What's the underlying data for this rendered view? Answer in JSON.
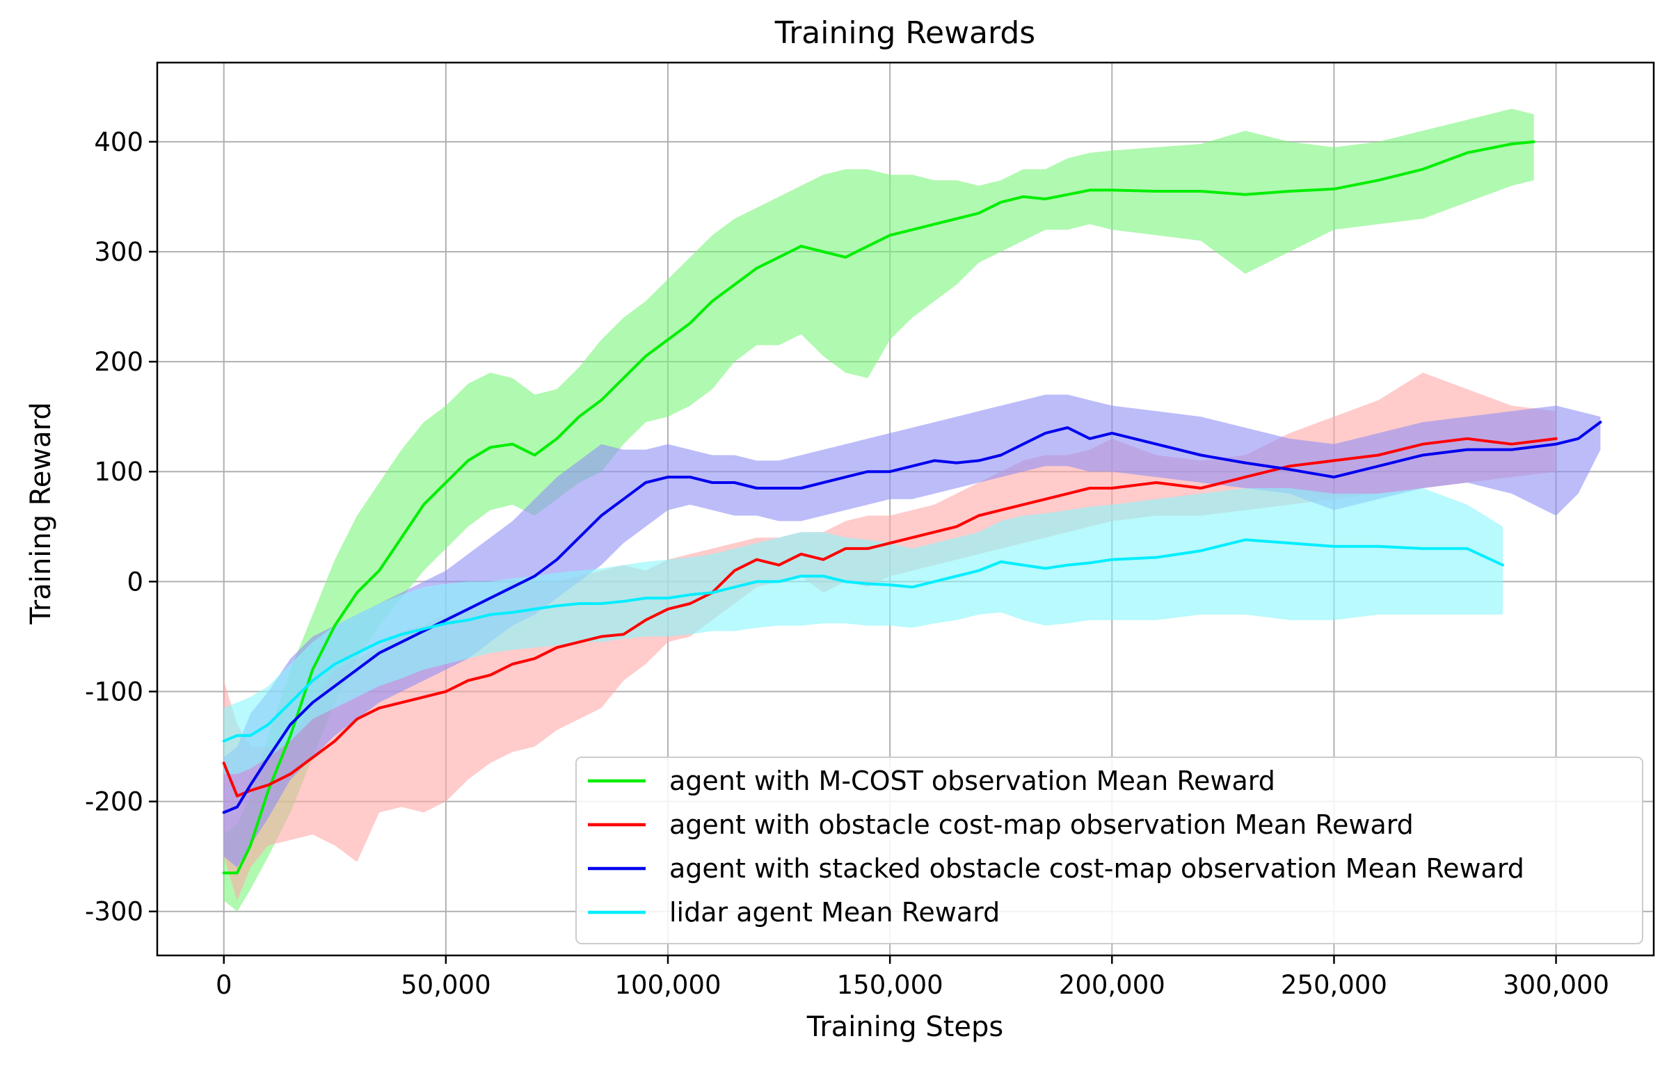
{
  "chart_data": {
    "type": "line",
    "title": "Training Rewards",
    "xlabel": "Training Steps",
    "ylabel": "Training Reward",
    "xlim": [
      -15000,
      322000
    ],
    "ylim": [
      -340,
      472
    ],
    "x_ticks": [
      0,
      50000,
      100000,
      150000,
      200000,
      250000,
      300000
    ],
    "x_tick_labels": [
      "0",
      "50,000",
      "100,000",
      "150,000",
      "200,000",
      "250,000",
      "300,000"
    ],
    "y_ticks": [
      -300,
      -200,
      -100,
      0,
      100,
      200,
      300,
      400
    ],
    "y_tick_labels": [
      "-300",
      "-200",
      "-100",
      "0",
      "100",
      "200",
      "300",
      "400"
    ],
    "grid": true,
    "legend_position": "lower-right",
    "series": [
      {
        "name": "agent with M-COST observation Mean Reward",
        "color": "#00ee00",
        "band_color": "#7cf57c",
        "x": [
          0,
          3000,
          6000,
          10000,
          15000,
          20000,
          25000,
          30000,
          35000,
          40000,
          45000,
          50000,
          55000,
          60000,
          65000,
          70000,
          75000,
          80000,
          85000,
          90000,
          95000,
          100000,
          105000,
          110000,
          115000,
          120000,
          125000,
          130000,
          135000,
          140000,
          145000,
          150000,
          155000,
          160000,
          165000,
          170000,
          175000,
          180000,
          185000,
          190000,
          195000,
          200000,
          210000,
          220000,
          230000,
          240000,
          250000,
          260000,
          270000,
          280000,
          290000,
          295000
        ],
        "y": [
          -265,
          -265,
          -240,
          -190,
          -140,
          -80,
          -40,
          -10,
          10,
          40,
          70,
          90,
          110,
          122,
          125,
          115,
          130,
          150,
          165,
          185,
          205,
          220,
          235,
          255,
          270,
          285,
          295,
          305,
          300,
          295,
          305,
          315,
          320,
          325,
          330,
          335,
          345,
          350,
          348,
          352,
          356,
          356,
          355,
          355,
          352,
          355,
          357,
          365,
          375,
          390,
          398,
          400
        ],
        "lower": [
          -290,
          -300,
          -280,
          -250,
          -210,
          -160,
          -110,
          -70,
          -40,
          -15,
          10,
          30,
          50,
          65,
          70,
          60,
          75,
          90,
          100,
          125,
          145,
          150,
          160,
          175,
          200,
          215,
          215,
          225,
          205,
          190,
          185,
          220,
          240,
          255,
          270,
          290,
          300,
          310,
          320,
          320,
          325,
          320,
          315,
          310,
          280,
          300,
          320,
          325,
          330,
          345,
          360,
          365
        ],
        "upper": [
          -230,
          -220,
          -195,
          -140,
          -80,
          -30,
          20,
          60,
          90,
          120,
          145,
          160,
          180,
          190,
          185,
          170,
          175,
          195,
          220,
          240,
          255,
          275,
          295,
          315,
          330,
          340,
          350,
          360,
          370,
          375,
          375,
          370,
          370,
          365,
          365,
          360,
          365,
          375,
          375,
          385,
          390,
          392,
          395,
          398,
          410,
          400,
          395,
          400,
          410,
          420,
          430,
          425
        ]
      },
      {
        "name": "agent with obstacle cost-map observation Mean Reward",
        "color": "#ff0000",
        "band_color": "#ffa8a8",
        "x": [
          0,
          3000,
          6000,
          10000,
          15000,
          20000,
          25000,
          30000,
          35000,
          40000,
          45000,
          50000,
          55000,
          60000,
          65000,
          70000,
          75000,
          80000,
          85000,
          90000,
          95000,
          100000,
          105000,
          110000,
          115000,
          120000,
          125000,
          130000,
          135000,
          140000,
          145000,
          150000,
          155000,
          160000,
          165000,
          170000,
          175000,
          180000,
          185000,
          190000,
          195000,
          200000,
          210000,
          220000,
          230000,
          240000,
          250000,
          260000,
          270000,
          280000,
          290000,
          300000
        ],
        "y": [
          -165,
          -195,
          -190,
          -185,
          -175,
          -160,
          -145,
          -125,
          -115,
          -110,
          -105,
          -100,
          -90,
          -85,
          -75,
          -70,
          -60,
          -55,
          -50,
          -48,
          -35,
          -25,
          -20,
          -10,
          10,
          20,
          15,
          25,
          20,
          30,
          30,
          35,
          40,
          45,
          50,
          60,
          65,
          70,
          75,
          80,
          85,
          85,
          90,
          85,
          95,
          105,
          110,
          115,
          125,
          130,
          125,
          130
        ],
        "lower": [
          -250,
          -290,
          -260,
          -240,
          -235,
          -230,
          -240,
          -255,
          -210,
          -205,
          -210,
          -200,
          -180,
          -165,
          -155,
          -150,
          -135,
          -125,
          -115,
          -90,
          -75,
          -55,
          -50,
          -35,
          -20,
          -5,
          0,
          5,
          -10,
          0,
          -5,
          5,
          10,
          15,
          20,
          25,
          30,
          35,
          40,
          45,
          50,
          55,
          60,
          60,
          65,
          70,
          75,
          80,
          85,
          90,
          95,
          100
        ],
        "upper": [
          -90,
          -130,
          -150,
          -150,
          -145,
          -110,
          -80,
          -70,
          -60,
          -45,
          -40,
          -30,
          -25,
          -15,
          0,
          0,
          0,
          5,
          10,
          15,
          10,
          20,
          25,
          30,
          35,
          40,
          40,
          45,
          45,
          55,
          60,
          60,
          65,
          70,
          80,
          90,
          100,
          110,
          115,
          115,
          120,
          130,
          115,
          110,
          115,
          135,
          150,
          165,
          190,
          175,
          160,
          155
        ]
      },
      {
        "name": "agent with stacked obstacle cost-map observation Mean Reward",
        "color": "#0000ee",
        "band_color": "#8f8ff5",
        "x": [
          0,
          3000,
          6000,
          10000,
          15000,
          20000,
          25000,
          30000,
          35000,
          40000,
          45000,
          50000,
          55000,
          60000,
          65000,
          70000,
          75000,
          80000,
          85000,
          90000,
          95000,
          100000,
          105000,
          110000,
          115000,
          120000,
          125000,
          130000,
          135000,
          140000,
          145000,
          150000,
          155000,
          160000,
          165000,
          170000,
          175000,
          180000,
          185000,
          190000,
          195000,
          200000,
          210000,
          220000,
          230000,
          240000,
          250000,
          260000,
          270000,
          280000,
          290000,
          300000,
          305000,
          310000
        ],
        "y": [
          -210,
          -205,
          -185,
          -160,
          -130,
          -110,
          -95,
          -80,
          -65,
          -55,
          -45,
          -35,
          -25,
          -15,
          -5,
          5,
          20,
          40,
          60,
          75,
          90,
          95,
          95,
          90,
          90,
          85,
          85,
          85,
          90,
          95,
          100,
          100,
          105,
          110,
          108,
          110,
          115,
          125,
          135,
          140,
          130,
          135,
          125,
          115,
          108,
          102,
          95,
          105,
          115,
          120,
          120,
          125,
          130,
          145
        ],
        "lower": [
          -250,
          -260,
          -240,
          -215,
          -180,
          -160,
          -140,
          -125,
          -110,
          -100,
          -90,
          -80,
          -70,
          -55,
          -40,
          -30,
          -15,
          0,
          15,
          35,
          50,
          65,
          70,
          65,
          60,
          60,
          55,
          55,
          60,
          65,
          70,
          75,
          75,
          80,
          85,
          90,
          95,
          100,
          105,
          105,
          100,
          100,
          95,
          90,
          85,
          80,
          65,
          75,
          85,
          90,
          80,
          60,
          80,
          120
        ],
        "upper": [
          -160,
          -150,
          -120,
          -100,
          -70,
          -50,
          -40,
          -30,
          -20,
          -10,
          0,
          10,
          25,
          40,
          55,
          75,
          95,
          110,
          125,
          120,
          120,
          125,
          120,
          115,
          115,
          110,
          110,
          115,
          120,
          125,
          130,
          135,
          140,
          145,
          150,
          155,
          160,
          165,
          170,
          170,
          165,
          160,
          155,
          150,
          140,
          130,
          125,
          135,
          145,
          150,
          155,
          160,
          155,
          150
        ]
      },
      {
        "name": "lidar agent Mean Reward",
        "color": "#00eeff",
        "band_color": "#88f6fc",
        "x": [
          0,
          3000,
          6000,
          10000,
          15000,
          20000,
          25000,
          30000,
          35000,
          40000,
          45000,
          50000,
          55000,
          60000,
          65000,
          70000,
          75000,
          80000,
          85000,
          90000,
          95000,
          100000,
          105000,
          110000,
          115000,
          120000,
          125000,
          130000,
          135000,
          140000,
          145000,
          150000,
          155000,
          160000,
          165000,
          170000,
          175000,
          180000,
          185000,
          190000,
          195000,
          200000,
          210000,
          220000,
          230000,
          240000,
          250000,
          260000,
          270000,
          280000,
          288000
        ],
        "y": [
          -145,
          -140,
          -140,
          -130,
          -110,
          -90,
          -75,
          -65,
          -55,
          -48,
          -43,
          -38,
          -35,
          -30,
          -28,
          -25,
          -22,
          -20,
          -20,
          -18,
          -15,
          -15,
          -12,
          -10,
          -5,
          0,
          0,
          5,
          5,
          0,
          -2,
          -3,
          -5,
          0,
          5,
          10,
          18,
          15,
          12,
          15,
          17,
          20,
          22,
          28,
          38,
          35,
          32,
          32,
          30,
          30,
          15
        ],
        "lower": [
          -175,
          -175,
          -170,
          -160,
          -145,
          -125,
          -115,
          -105,
          -95,
          -88,
          -80,
          -75,
          -70,
          -65,
          -62,
          -60,
          -58,
          -55,
          -55,
          -52,
          -50,
          -50,
          -48,
          -45,
          -45,
          -42,
          -40,
          -40,
          -38,
          -38,
          -40,
          -40,
          -42,
          -38,
          -35,
          -30,
          -28,
          -35,
          -40,
          -38,
          -35,
          -35,
          -35,
          -30,
          -30,
          -35,
          -35,
          -30,
          -30,
          -30,
          -30
        ],
        "upper": [
          -115,
          -110,
          -105,
          -95,
          -75,
          -55,
          -40,
          -30,
          -20,
          -12,
          -5,
          -2,
          0,
          0,
          3,
          5,
          8,
          10,
          12,
          15,
          18,
          20,
          22,
          25,
          30,
          35,
          40,
          45,
          45,
          40,
          38,
          35,
          30,
          35,
          40,
          45,
          55,
          60,
          62,
          65,
          68,
          70,
          75,
          80,
          85,
          85,
          80,
          80,
          85,
          70,
          50
        ]
      }
    ]
  }
}
